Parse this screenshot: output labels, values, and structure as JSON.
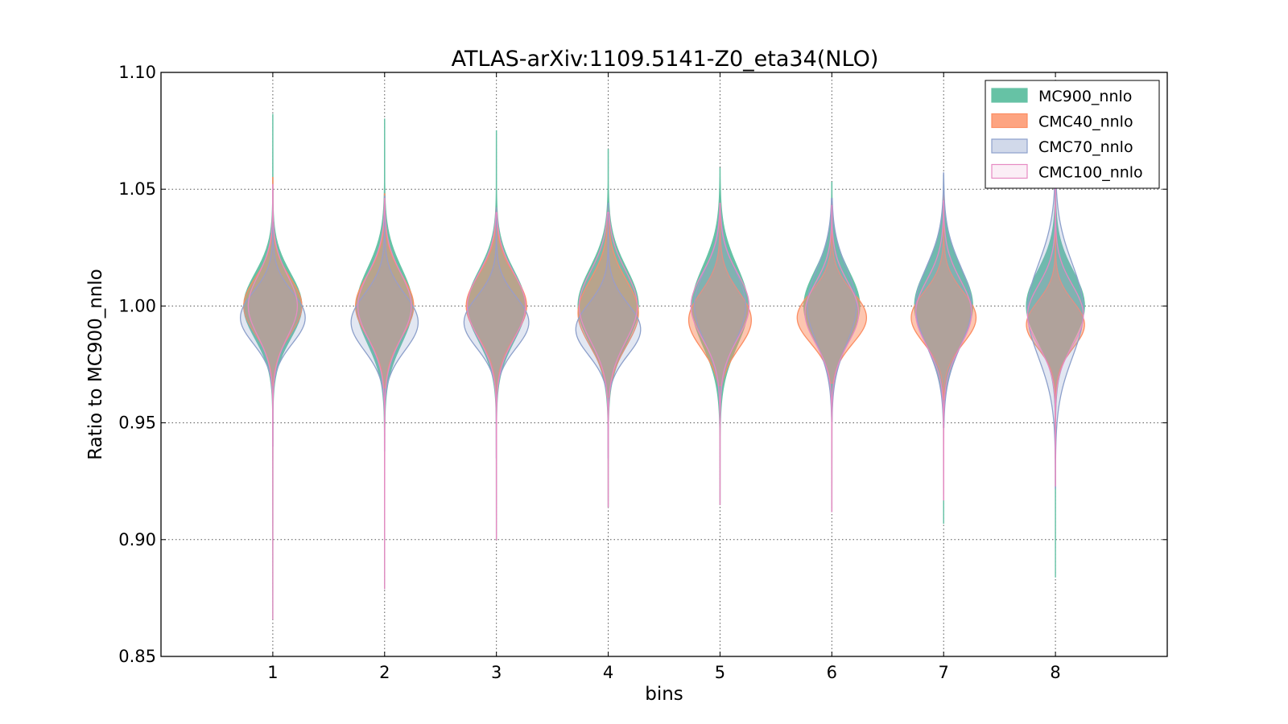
{
  "chart_data": {
    "type": "violin",
    "title": "ATLAS-arXiv:1109.5141-Z0_eta34(NLO)",
    "xlabel": "bins",
    "ylabel": "Ratio to MC900_nnlo",
    "xlim": [
      0,
      9
    ],
    "ylim": [
      0.85,
      1.1
    ],
    "grid": true,
    "legend_position": "top-right",
    "categories": [
      "1",
      "2",
      "3",
      "4",
      "5",
      "6",
      "7",
      "8"
    ],
    "x": [
      1,
      2,
      3,
      4,
      5,
      6,
      7,
      8
    ],
    "y_ticks": [
      0.85,
      0.9,
      0.95,
      1.0,
      1.05,
      1.1
    ],
    "y_tick_labels": [
      "0.85",
      "0.90",
      "0.95",
      "1.00",
      "1.05",
      "1.10"
    ],
    "series": [
      {
        "name": "MC900_nnlo",
        "fill": "#66c2a5",
        "stroke": "#66c2a5",
        "fill_opacity": 1.0,
        "min": [
          0.866,
          0.879,
          0.9,
          0.914,
          0.915,
          0.912,
          0.907,
          0.884
        ],
        "max": [
          1.082,
          1.08,
          1.075,
          1.067,
          1.059,
          1.053,
          1.056,
          1.06
        ],
        "peak": [
          1.0,
          1.0,
          1.0,
          1.0,
          1.0,
          1.0,
          1.0,
          1.0
        ],
        "width": [
          0.26,
          0.25,
          0.26,
          0.27,
          0.25,
          0.25,
          0.26,
          0.26
        ],
        "spread": [
          0.014,
          0.016,
          0.015,
          0.016,
          0.017,
          0.015,
          0.016,
          0.015
        ]
      },
      {
        "name": "CMC40_nnlo",
        "fill": "#fc8d62",
        "stroke": "#fc8d62",
        "fill_opacity": 0.5,
        "min": [
          0.966,
          0.965,
          0.962,
          0.961,
          0.966,
          0.967,
          0.96,
          0.935
        ],
        "max": [
          1.055,
          1.048,
          1.042,
          1.042,
          1.043,
          1.045,
          1.048,
          1.043
        ],
        "peak": [
          1.0,
          1.0,
          1.0,
          0.997,
          0.994,
          0.995,
          0.995,
          0.992
        ],
        "width": [
          0.26,
          0.26,
          0.27,
          0.27,
          0.28,
          0.31,
          0.29,
          0.26
        ],
        "spread": [
          0.012,
          0.013,
          0.013,
          0.014,
          0.012,
          0.011,
          0.011,
          0.01
        ]
      },
      {
        "name": "CMC70_nnlo",
        "fill": "#8da0cb",
        "stroke": "#8da0cb",
        "fill_opacity": 0.25,
        "min": [
          0.94,
          0.938,
          0.935,
          0.935,
          0.95,
          0.95,
          0.948,
          0.922
        ],
        "max": [
          1.05,
          1.047,
          1.042,
          1.044,
          1.039,
          1.046,
          1.057,
          1.07
        ],
        "peak": [
          0.995,
          0.993,
          0.993,
          0.99,
          1.0,
          1.0,
          1.0,
          0.998
        ],
        "width": [
          0.29,
          0.3,
          0.29,
          0.29,
          0.23,
          0.22,
          0.25,
          0.25
        ],
        "spread": [
          0.011,
          0.012,
          0.011,
          0.011,
          0.015,
          0.016,
          0.017,
          0.02
        ]
      },
      {
        "name": "CMC100_nnlo",
        "fill": "#e78ac3",
        "stroke": "#e78ac3",
        "fill_opacity": 0.15,
        "min": [
          0.866,
          0.879,
          0.9,
          0.914,
          0.915,
          0.912,
          0.917,
          0.923
        ],
        "max": [
          1.052,
          1.046,
          1.04,
          1.04,
          1.044,
          1.043,
          1.045,
          1.063
        ],
        "peak": [
          1.0,
          1.0,
          1.0,
          1.0,
          1.0,
          0.997,
          0.997,
          0.996
        ],
        "width": [
          0.22,
          0.24,
          0.26,
          0.26,
          0.26,
          0.24,
          0.25,
          0.25
        ],
        "spread": [
          0.013,
          0.014,
          0.014,
          0.015,
          0.014,
          0.013,
          0.014,
          0.013
        ]
      }
    ]
  }
}
